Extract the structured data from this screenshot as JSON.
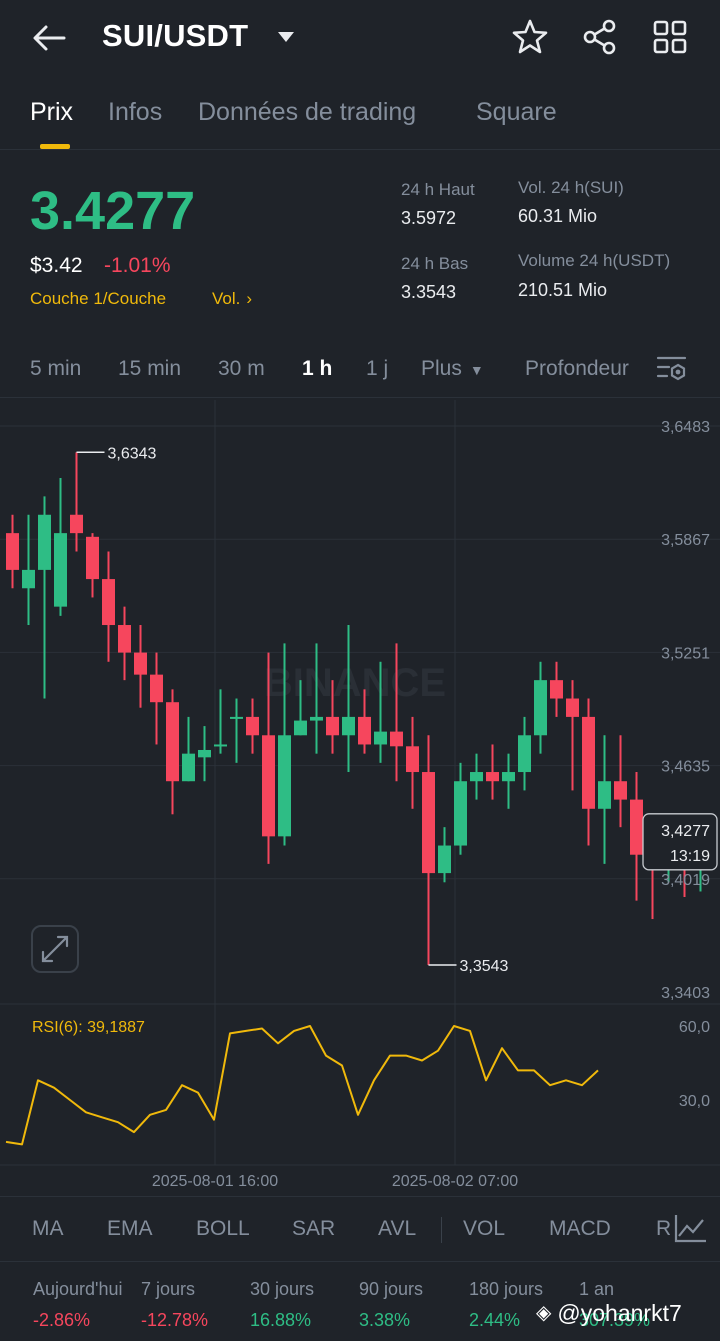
{
  "header": {
    "pair": "SUI/USDT",
    "icons": [
      "back-arrow-icon",
      "chevron-down-icon",
      "star-icon",
      "share-icon",
      "grid-icon"
    ]
  },
  "tabs": [
    "Prix",
    "Infos",
    "Données de trading",
    "Square"
  ],
  "ticker": {
    "last_price": "3.4277",
    "usd_price": "$3.42",
    "change_pct": "-1.01%",
    "layer_label": "Couche 1/Couche",
    "vol_label": "Vol.",
    "high_label": "24 h Haut",
    "high_value": "3.5972",
    "low_label": "24 h Bas",
    "low_value": "3.3543",
    "vol_base_label": "Vol. 24 h(SUI)",
    "vol_base_value": "60.31 Mio",
    "vol_quote_label": "Volume 24 h(USDT)",
    "vol_quote_value": "210.51 Mio"
  },
  "intervals": [
    "5 min",
    "15 min",
    "30 m",
    "1 h",
    "1 j",
    "Plus",
    "Profondeur"
  ],
  "active_interval": "1 h",
  "chart_data": {
    "type": "candlestick",
    "y_ticks": [
      "3,6483",
      "3,5867",
      "3,5251",
      "3,4635",
      "3,4019",
      "3,3403"
    ],
    "y_range": [
      3.3403,
      3.6483
    ],
    "high_marker": "3,6343",
    "low_marker": "3,3543",
    "last_price_tag": "3,4277",
    "countdown": "13:19",
    "watermark": "BINANCE",
    "candles": [
      [
        3.59,
        3.57,
        3.6,
        3.56
      ],
      [
        3.56,
        3.57,
        3.6,
        3.54
      ],
      [
        3.57,
        3.6,
        3.61,
        3.5
      ],
      [
        3.55,
        3.59,
        3.62,
        3.545
      ],
      [
        3.6,
        3.59,
        3.634,
        3.58
      ],
      [
        3.588,
        3.565,
        3.59,
        3.555
      ],
      [
        3.565,
        3.54,
        3.58,
        3.52
      ],
      [
        3.54,
        3.525,
        3.55,
        3.51
      ],
      [
        3.525,
        3.513,
        3.54,
        3.495
      ],
      [
        3.513,
        3.498,
        3.525,
        3.475
      ],
      [
        3.498,
        3.455,
        3.505,
        3.437
      ],
      [
        3.455,
        3.47,
        3.49,
        3.455
      ],
      [
        3.468,
        3.472,
        3.485,
        3.455
      ],
      [
        3.475,
        3.475,
        3.505,
        3.47
      ],
      [
        3.49,
        3.49,
        3.5,
        3.465
      ],
      [
        3.49,
        3.48,
        3.5,
        3.47
      ],
      [
        3.48,
        3.425,
        3.525,
        3.41
      ],
      [
        3.425,
        3.48,
        3.53,
        3.42
      ],
      [
        3.48,
        3.488,
        3.51,
        3.48
      ],
      [
        3.488,
        3.49,
        3.53,
        3.47
      ],
      [
        3.49,
        3.48,
        3.51,
        3.47
      ],
      [
        3.48,
        3.49,
        3.54,
        3.46
      ],
      [
        3.49,
        3.475,
        3.505,
        3.47
      ],
      [
        3.475,
        3.482,
        3.52,
        3.465
      ],
      [
        3.482,
        3.474,
        3.53,
        3.455
      ],
      [
        3.474,
        3.46,
        3.49,
        3.44
      ],
      [
        3.46,
        3.405,
        3.48,
        3.355
      ],
      [
        3.405,
        3.42,
        3.43,
        3.4
      ],
      [
        3.42,
        3.455,
        3.465,
        3.415
      ],
      [
        3.455,
        3.46,
        3.47,
        3.445
      ],
      [
        3.46,
        3.455,
        3.475,
        3.445
      ],
      [
        3.455,
        3.46,
        3.47,
        3.44
      ],
      [
        3.46,
        3.48,
        3.49,
        3.45
      ],
      [
        3.48,
        3.51,
        3.52,
        3.47
      ],
      [
        3.51,
        3.5,
        3.52,
        3.49
      ],
      [
        3.5,
        3.49,
        3.51,
        3.45
      ],
      [
        3.49,
        3.44,
        3.5,
        3.42
      ],
      [
        3.44,
        3.455,
        3.48,
        3.41
      ],
      [
        3.455,
        3.445,
        3.48,
        3.43
      ],
      [
        3.445,
        3.415,
        3.46,
        3.39
      ],
      [
        3.415,
        3.408,
        3.43,
        3.38
      ],
      [
        3.408,
        3.425,
        3.43,
        3.4
      ],
      [
        3.42,
        3.41,
        3.425,
        3.392
      ],
      [
        3.41,
        3.428,
        3.43,
        3.395
      ]
    ]
  },
  "rsi": {
    "label": "RSI(6): 39,1887",
    "y_ticks": [
      "60,0",
      "30,0"
    ],
    "values": [
      13,
      12,
      38,
      35,
      30,
      25,
      23,
      21,
      17,
      24,
      26,
      36,
      33,
      22,
      57,
      58,
      59,
      53,
      58,
      60,
      48,
      44,
      24,
      38,
      48,
      48,
      46,
      50,
      60,
      58,
      38,
      51,
      42,
      42,
      36,
      38,
      36,
      42
    ]
  },
  "x_labels": [
    "2025-08-01 16:00",
    "2025-08-02 07:00"
  ],
  "indicators": [
    "MA",
    "EMA",
    "BOLL",
    "SAR",
    "AVL",
    "VOL",
    "MACD",
    "R"
  ],
  "performance": {
    "labels": [
      "Aujourd'hui",
      "7 jours",
      "30 jours",
      "90 jours",
      "180 jours",
      "1 an"
    ],
    "values": [
      "-2.86%",
      "-12.78%",
      "16.88%",
      "3.38%",
      "2.44%",
      "307.39%"
    ]
  },
  "watermark_user": "@yohanrkt7",
  "colors": {
    "up": "#2ebd85",
    "down": "#f6465d",
    "accent": "#f0b90b",
    "bg": "#1f2329",
    "rsi": "#f0b90b"
  }
}
